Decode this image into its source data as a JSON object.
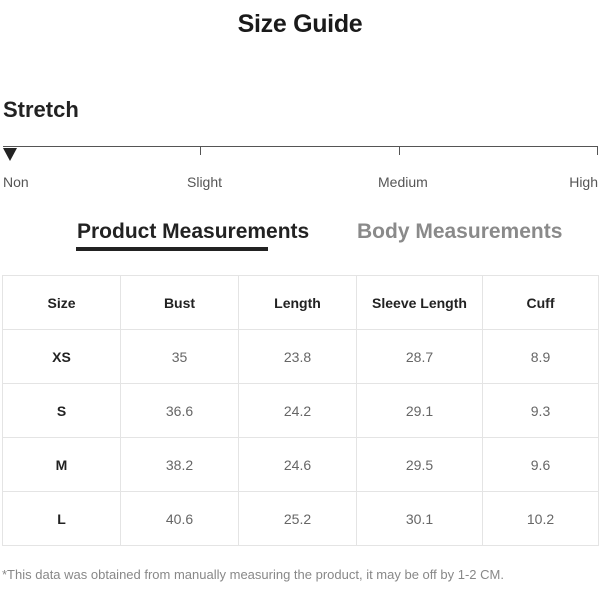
{
  "title": "Size Guide",
  "stretch": {
    "label": "Stretch",
    "levels": [
      "Non",
      "Slight",
      "Medium",
      "High"
    ],
    "selected": "Non"
  },
  "tabs": {
    "active": "Product Measurements",
    "inactive": "Body Measurements"
  },
  "table": {
    "headers": [
      "Size",
      "Bust",
      "Length",
      "Sleeve Length",
      "Cuff"
    ],
    "rows": [
      [
        "XS",
        "35",
        "23.8",
        "28.7",
        "8.9"
      ],
      [
        "S",
        "36.6",
        "24.2",
        "29.1",
        "9.3"
      ],
      [
        "M",
        "38.2",
        "24.6",
        "29.5",
        "9.6"
      ],
      [
        "L",
        "40.6",
        "25.2",
        "30.1",
        "10.2"
      ]
    ]
  },
  "footnote": "*This data was obtained from manually measuring the product, it may be off by 1-2 CM."
}
